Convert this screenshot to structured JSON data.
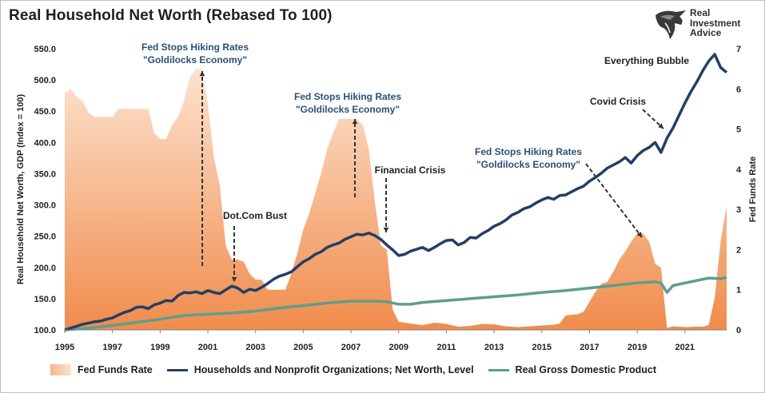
{
  "title": "Real Household Net Worth (Rebased To 100)",
  "logo": {
    "line1": "Real",
    "line2": "Investment",
    "line3": "Advice"
  },
  "colors": {
    "fed": "#f08c4c",
    "fed_light": "#fde3d0",
    "nw": "#243f66",
    "gdp": "#5f9e8c"
  },
  "chart_data": {
    "type": "area+line",
    "xlabel": "",
    "ylabel_left": "Real Household Net Worth, GDP (Index = 100)",
    "ylabel_right": "Fed Funds Rate",
    "xlim": [
      1995,
      2022.75
    ],
    "ylim_left": [
      100,
      550
    ],
    "ylim_right": [
      0,
      7
    ],
    "yticks_left": [
      "100.0",
      "150.0",
      "200.0",
      "250.0",
      "300.0",
      "350.0",
      "400.0",
      "450.0",
      "500.0",
      "550.0"
    ],
    "yticks_right": [
      "0",
      "1",
      "2",
      "3",
      "4",
      "5",
      "6",
      "7"
    ],
    "xticks": [
      "1995",
      "1997",
      "1999",
      "2001",
      "2003",
      "2005",
      "2007",
      "2009",
      "2011",
      "2013",
      "2015",
      "2017",
      "2019",
      "2021"
    ],
    "legend_position": "bottom",
    "series": [
      {
        "name": "Fed Funds Rate",
        "axis": "right",
        "style": "area",
        "points": [
          [
            1995.0,
            5.9
          ],
          [
            1995.25,
            6.0
          ],
          [
            1995.5,
            5.8
          ],
          [
            1995.75,
            5.7
          ],
          [
            1996.0,
            5.4
          ],
          [
            1996.25,
            5.3
          ],
          [
            1996.5,
            5.3
          ],
          [
            1996.75,
            5.3
          ],
          [
            1997.0,
            5.3
          ],
          [
            1997.25,
            5.5
          ],
          [
            1997.5,
            5.5
          ],
          [
            1997.75,
            5.5
          ],
          [
            1998.0,
            5.5
          ],
          [
            1998.25,
            5.5
          ],
          [
            1998.5,
            5.5
          ],
          [
            1998.75,
            4.9
          ],
          [
            1999.0,
            4.75
          ],
          [
            1999.25,
            4.75
          ],
          [
            1999.5,
            5.1
          ],
          [
            1999.75,
            5.3
          ],
          [
            2000.0,
            5.7
          ],
          [
            2000.25,
            6.3
          ],
          [
            2000.5,
            6.5
          ],
          [
            2000.75,
            6.5
          ],
          [
            2001.0,
            5.6
          ],
          [
            2001.25,
            4.3
          ],
          [
            2001.5,
            3.6
          ],
          [
            2001.75,
            2.1
          ],
          [
            2002.0,
            1.75
          ],
          [
            2002.25,
            1.75
          ],
          [
            2002.5,
            1.7
          ],
          [
            2002.75,
            1.4
          ],
          [
            2003.0,
            1.25
          ],
          [
            2003.25,
            1.25
          ],
          [
            2003.5,
            1.0
          ],
          [
            2003.75,
            1.0
          ],
          [
            2004.0,
            1.0
          ],
          [
            2004.25,
            1.0
          ],
          [
            2004.5,
            1.4
          ],
          [
            2004.75,
            1.9
          ],
          [
            2005.0,
            2.5
          ],
          [
            2005.25,
            2.9
          ],
          [
            2005.5,
            3.4
          ],
          [
            2005.75,
            3.9
          ],
          [
            2006.0,
            4.5
          ],
          [
            2006.25,
            4.9
          ],
          [
            2006.5,
            5.25
          ],
          [
            2006.75,
            5.25
          ],
          [
            2007.0,
            5.25
          ],
          [
            2007.25,
            5.25
          ],
          [
            2007.5,
            5.1
          ],
          [
            2007.75,
            4.5
          ],
          [
            2008.0,
            3.2
          ],
          [
            2008.25,
            2.1
          ],
          [
            2008.5,
            2.0
          ],
          [
            2008.75,
            0.5
          ],
          [
            2009.0,
            0.2
          ],
          [
            2009.5,
            0.16
          ],
          [
            2010.0,
            0.12
          ],
          [
            2010.5,
            0.18
          ],
          [
            2011.0,
            0.15
          ],
          [
            2011.5,
            0.08
          ],
          [
            2012.0,
            0.1
          ],
          [
            2012.5,
            0.15
          ],
          [
            2013.0,
            0.14
          ],
          [
            2013.5,
            0.09
          ],
          [
            2014.0,
            0.07
          ],
          [
            2014.5,
            0.09
          ],
          [
            2015.0,
            0.11
          ],
          [
            2015.5,
            0.13
          ],
          [
            2015.75,
            0.16
          ],
          [
            2016.0,
            0.36
          ],
          [
            2016.5,
            0.39
          ],
          [
            2016.75,
            0.45
          ],
          [
            2017.0,
            0.7
          ],
          [
            2017.25,
            0.95
          ],
          [
            2017.5,
            1.15
          ],
          [
            2017.75,
            1.2
          ],
          [
            2018.0,
            1.45
          ],
          [
            2018.25,
            1.75
          ],
          [
            2018.5,
            1.95
          ],
          [
            2018.75,
            2.2
          ],
          [
            2019.0,
            2.4
          ],
          [
            2019.25,
            2.4
          ],
          [
            2019.5,
            2.2
          ],
          [
            2019.75,
            1.65
          ],
          [
            2020.0,
            1.55
          ],
          [
            2020.25,
            0.05
          ],
          [
            2020.5,
            0.09
          ],
          [
            2021.0,
            0.07
          ],
          [
            2021.5,
            0.08
          ],
          [
            2021.75,
            0.08
          ],
          [
            2022.0,
            0.12
          ],
          [
            2022.25,
            0.8
          ],
          [
            2022.5,
            2.2
          ],
          [
            2022.75,
            3.1
          ]
        ]
      },
      {
        "name": "Households and Nonprofit Organizations; Net Worth, Level",
        "axis": "left",
        "style": "line",
        "points": [
          [
            1995.0,
            100
          ],
          [
            1995.25,
            103
          ],
          [
            1995.5,
            106
          ],
          [
            1995.75,
            109
          ],
          [
            1996.0,
            111
          ],
          [
            1996.25,
            113
          ],
          [
            1996.5,
            114
          ],
          [
            1996.75,
            117
          ],
          [
            1997.0,
            119
          ],
          [
            1997.25,
            124
          ],
          [
            1997.5,
            128
          ],
          [
            1997.75,
            131
          ],
          [
            1998.0,
            136
          ],
          [
            1998.25,
            137
          ],
          [
            1998.5,
            134
          ],
          [
            1998.75,
            140
          ],
          [
            1999.0,
            143
          ],
          [
            1999.25,
            147
          ],
          [
            1999.5,
            146
          ],
          [
            1999.75,
            155
          ],
          [
            2000.0,
            160
          ],
          [
            2000.25,
            159
          ],
          [
            2000.5,
            161
          ],
          [
            2000.75,
            158
          ],
          [
            2001.0,
            163
          ],
          [
            2001.25,
            160
          ],
          [
            2001.5,
            158
          ],
          [
            2001.75,
            164
          ],
          [
            2002.0,
            170
          ],
          [
            2002.25,
            167
          ],
          [
            2002.5,
            160
          ],
          [
            2002.75,
            165
          ],
          [
            2003.0,
            163
          ],
          [
            2003.25,
            168
          ],
          [
            2003.5,
            174
          ],
          [
            2003.75,
            181
          ],
          [
            2004.0,
            186
          ],
          [
            2004.25,
            189
          ],
          [
            2004.5,
            193
          ],
          [
            2004.75,
            201
          ],
          [
            2005.0,
            209
          ],
          [
            2005.25,
            214
          ],
          [
            2005.5,
            221
          ],
          [
            2005.75,
            225
          ],
          [
            2006.0,
            232
          ],
          [
            2006.25,
            236
          ],
          [
            2006.5,
            239
          ],
          [
            2006.75,
            245
          ],
          [
            2007.0,
            249
          ],
          [
            2007.25,
            253
          ],
          [
            2007.5,
            252
          ],
          [
            2007.75,
            255
          ],
          [
            2008.0,
            251
          ],
          [
            2008.25,
            245
          ],
          [
            2008.5,
            236
          ],
          [
            2008.75,
            228
          ],
          [
            2009.0,
            219
          ],
          [
            2009.25,
            221
          ],
          [
            2009.5,
            226
          ],
          [
            2009.75,
            229
          ],
          [
            2010.0,
            232
          ],
          [
            2010.25,
            227
          ],
          [
            2010.5,
            232
          ],
          [
            2010.75,
            238
          ],
          [
            2011.0,
            243
          ],
          [
            2011.25,
            244
          ],
          [
            2011.5,
            236
          ],
          [
            2011.75,
            240
          ],
          [
            2012.0,
            248
          ],
          [
            2012.25,
            247
          ],
          [
            2012.5,
            254
          ],
          [
            2012.75,
            259
          ],
          [
            2013.0,
            266
          ],
          [
            2013.25,
            270
          ],
          [
            2013.5,
            276
          ],
          [
            2013.75,
            284
          ],
          [
            2014.0,
            288
          ],
          [
            2014.25,
            294
          ],
          [
            2014.5,
            297
          ],
          [
            2014.75,
            303
          ],
          [
            2015.0,
            308
          ],
          [
            2015.25,
            312
          ],
          [
            2015.5,
            309
          ],
          [
            2015.75,
            315
          ],
          [
            2016.0,
            316
          ],
          [
            2016.25,
            321
          ],
          [
            2016.5,
            326
          ],
          [
            2016.75,
            330
          ],
          [
            2017.0,
            338
          ],
          [
            2017.25,
            344
          ],
          [
            2017.5,
            351
          ],
          [
            2017.75,
            359
          ],
          [
            2018.0,
            364
          ],
          [
            2018.25,
            369
          ],
          [
            2018.5,
            376
          ],
          [
            2018.75,
            367
          ],
          [
            2019.0,
            379
          ],
          [
            2019.25,
            387
          ],
          [
            2019.5,
            392
          ],
          [
            2019.75,
            400
          ],
          [
            2020.0,
            384
          ],
          [
            2020.25,
            407
          ],
          [
            2020.5,
            423
          ],
          [
            2020.75,
            443
          ],
          [
            2021.0,
            463
          ],
          [
            2021.25,
            481
          ],
          [
            2021.5,
            497
          ],
          [
            2021.75,
            515
          ],
          [
            2022.0,
            530
          ],
          [
            2022.25,
            541
          ],
          [
            2022.5,
            520
          ],
          [
            2022.75,
            512
          ]
        ]
      },
      {
        "name": "Real Gross Domestic Product",
        "axis": "left",
        "style": "line",
        "points": [
          [
            1995.0,
            100
          ],
          [
            1996.0,
            103
          ],
          [
            1997.0,
            107
          ],
          [
            1998.0,
            112
          ],
          [
            1999.0,
            117
          ],
          [
            2000.0,
            123
          ],
          [
            2001.0,
            125
          ],
          [
            2002.0,
            127
          ],
          [
            2003.0,
            130
          ],
          [
            2004.0,
            135
          ],
          [
            2005.0,
            139
          ],
          [
            2006.0,
            143
          ],
          [
            2007.0,
            146
          ],
          [
            2008.0,
            146
          ],
          [
            2008.5,
            145
          ],
          [
            2009.0,
            141
          ],
          [
            2009.5,
            141
          ],
          [
            2010.0,
            144
          ],
          [
            2011.0,
            147
          ],
          [
            2012.0,
            150
          ],
          [
            2013.0,
            153
          ],
          [
            2014.0,
            156
          ],
          [
            2015.0,
            160
          ],
          [
            2016.0,
            163
          ],
          [
            2017.0,
            167
          ],
          [
            2018.0,
            171
          ],
          [
            2019.0,
            175
          ],
          [
            2019.75,
            177
          ],
          [
            2020.0,
            175
          ],
          [
            2020.25,
            160
          ],
          [
            2020.5,
            171
          ],
          [
            2021.0,
            175
          ],
          [
            2021.5,
            179
          ],
          [
            2022.0,
            183
          ],
          [
            2022.5,
            182
          ],
          [
            2022.75,
            184
          ]
        ]
      }
    ],
    "annotations": [
      {
        "text": [
          "Fed Stops Hiking Rates",
          "\"Goldilocks Economy\""
        ],
        "color": "#2c4f77"
      },
      {
        "text": [
          "Fed Stops Hiking Rates",
          "\"Goldilocks Economy\""
        ],
        "color": "#2c4f77"
      },
      {
        "text": [
          "Fed Stops Hiking Rates",
          "\"Goldilocks Economy\""
        ],
        "color": "#2c4f77"
      },
      {
        "text": [
          "Dot.Com Bust"
        ],
        "color": "#1f1f1f"
      },
      {
        "text": [
          "Financial Crisis"
        ],
        "color": "#1f1f1f"
      },
      {
        "text": [
          "Covid Crisis"
        ],
        "color": "#1f1f1f"
      },
      {
        "text": [
          "Everything Bubble"
        ],
        "color": "#1f1f1f"
      }
    ]
  }
}
